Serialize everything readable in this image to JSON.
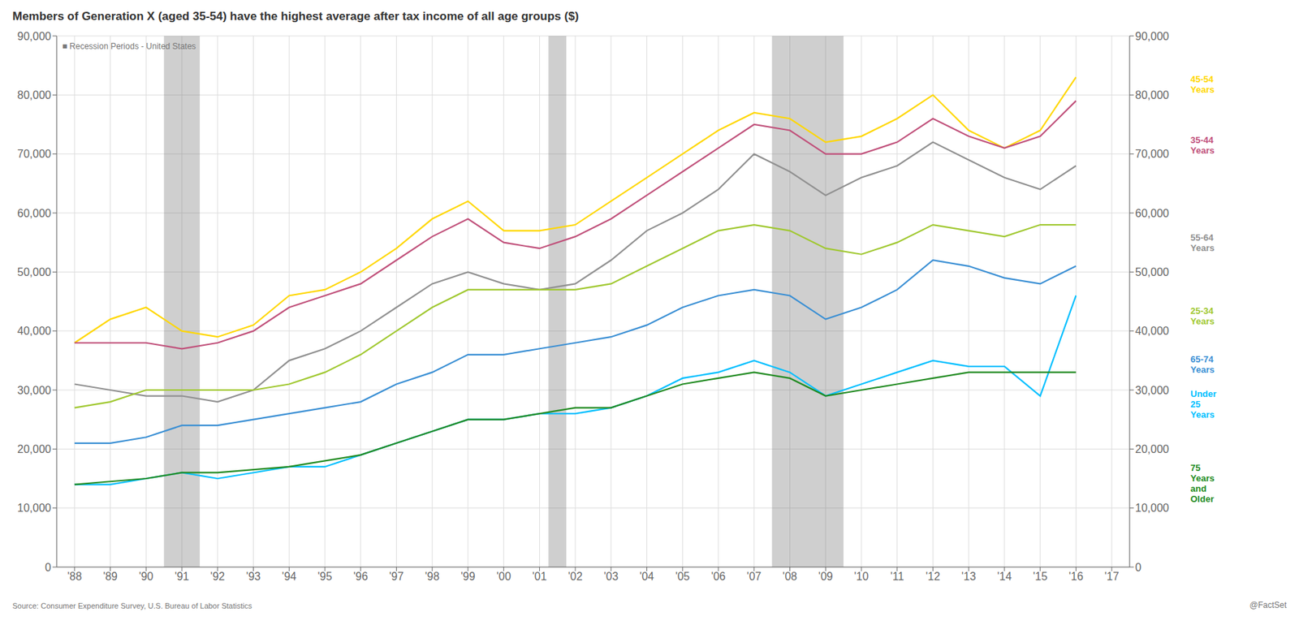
{
  "chart_data": {
    "type": "line",
    "title": "Members of Generation X (aged 35-54) have the highest average after tax income of all age groups ($)",
    "subtitle": "■  Recession Periods - United States",
    "source": "Source: Consumer Expenditure Survey, U.S. Bureau of Labor Statistics",
    "watermark": "@FactSet",
    "x": [
      1988,
      1989,
      1990,
      1991,
      1992,
      1993,
      1994,
      1995,
      1996,
      1997,
      1998,
      1999,
      2000,
      2001,
      2002,
      2003,
      2004,
      2005,
      2006,
      2007,
      2008,
      2009,
      2010,
      2011,
      2012,
      2013,
      2014,
      2015,
      2016
    ],
    "series": [
      {
        "name": "45-54 Years",
        "color": "#ffd700",
        "values": [
          38000,
          42000,
          44000,
          40000,
          39000,
          41000,
          46000,
          47000,
          50000,
          54000,
          59000,
          62000,
          57000,
          57000,
          58000,
          62000,
          66000,
          70000,
          74000,
          77000,
          76000,
          72000,
          73000,
          76000,
          80000,
          74000,
          71000,
          74000,
          83000
        ]
      },
      {
        "name": "35-44 Years",
        "color": "#c0507a",
        "values": [
          38000,
          38000,
          38000,
          37000,
          38000,
          40000,
          44000,
          46000,
          48000,
          52000,
          56000,
          59000,
          55000,
          54000,
          56000,
          59000,
          63000,
          67000,
          71000,
          75000,
          74000,
          70000,
          70000,
          72000,
          76000,
          73000,
          71000,
          73000,
          79000
        ]
      },
      {
        "name": "55-64 Years",
        "color": "#909090",
        "values": [
          31000,
          30000,
          29000,
          29000,
          28000,
          30000,
          35000,
          37000,
          40000,
          44000,
          48000,
          50000,
          48000,
          47000,
          48000,
          52000,
          57000,
          60000,
          64000,
          70000,
          67000,
          63000,
          66000,
          68000,
          72000,
          69000,
          66000,
          64000,
          68000
        ]
      },
      {
        "name": "25-34 Years",
        "color": "#a0c830",
        "values": [
          27000,
          28000,
          30000,
          30000,
          30000,
          30000,
          31000,
          33000,
          36000,
          40000,
          44000,
          47000,
          47000,
          47000,
          47000,
          48000,
          51000,
          54000,
          57000,
          58000,
          57000,
          54000,
          53000,
          55000,
          58000,
          57000,
          56000,
          58000,
          58000
        ]
      },
      {
        "name": "65-74 Years",
        "color": "#3a8fd4",
        "values": [
          21000,
          21000,
          22000,
          24000,
          24000,
          25000,
          26000,
          27000,
          28000,
          31000,
          33000,
          36000,
          36000,
          37000,
          38000,
          39000,
          41000,
          44000,
          46000,
          47000,
          46000,
          42000,
          44000,
          47000,
          52000,
          51000,
          49000,
          48000,
          51000
        ]
      },
      {
        "name": "Under 25 Years",
        "color": "#00bfff",
        "values": [
          14000,
          14000,
          15000,
          16000,
          15000,
          16000,
          17000,
          17000,
          19000,
          21000,
          23000,
          25000,
          25000,
          26000,
          26000,
          27000,
          29000,
          32000,
          33000,
          35000,
          33000,
          29000,
          31000,
          33000,
          35000,
          34000,
          34000,
          29000,
          46000
        ]
      },
      {
        "name": "75 Years and Older",
        "color": "#228B22",
        "values": [
          14000,
          14500,
          15000,
          16000,
          16000,
          16500,
          17000,
          18000,
          19000,
          21000,
          23000,
          25000,
          25000,
          26000,
          27000,
          27000,
          29000,
          31000,
          32000,
          33000,
          32000,
          29000,
          30000,
          31000,
          32000,
          33000,
          33000,
          33000,
          33000
        ]
      }
    ],
    "recession_periods": [
      [
        1990.5,
        1991.5
      ],
      [
        2001.25,
        2001.75
      ],
      [
        2007.5,
        2009.5
      ]
    ],
    "xlim": [
      1987.5,
      2017.5
    ],
    "xticks": [
      {
        "value": 1988,
        "label": "'88"
      },
      {
        "value": 1989,
        "label": "'89"
      },
      {
        "value": 1990,
        "label": "'90"
      },
      {
        "value": 1991,
        "label": "'91"
      },
      {
        "value": 1992,
        "label": "'92"
      },
      {
        "value": 1993,
        "label": "'93"
      },
      {
        "value": 1994,
        "label": "'94"
      },
      {
        "value": 1995,
        "label": "'95"
      },
      {
        "value": 1996,
        "label": "'96"
      },
      {
        "value": 1997,
        "label": "'97"
      },
      {
        "value": 1998,
        "label": "'98"
      },
      {
        "value": 1999,
        "label": "'99"
      },
      {
        "value": 2000,
        "label": "'00"
      },
      {
        "value": 2001,
        "label": "'01"
      },
      {
        "value": 2002,
        "label": "'02"
      },
      {
        "value": 2003,
        "label": "'03"
      },
      {
        "value": 2004,
        "label": "'04"
      },
      {
        "value": 2005,
        "label": "'05"
      },
      {
        "value": 2006,
        "label": "'06"
      },
      {
        "value": 2007,
        "label": "'07"
      },
      {
        "value": 2008,
        "label": "'08"
      },
      {
        "value": 2009,
        "label": "'09"
      },
      {
        "value": 2010,
        "label": "'10"
      },
      {
        "value": 2011,
        "label": "'11"
      },
      {
        "value": 2012,
        "label": "'12"
      },
      {
        "value": 2013,
        "label": "'13"
      },
      {
        "value": 2014,
        "label": "'14"
      },
      {
        "value": 2015,
        "label": "'15"
      },
      {
        "value": 2016,
        "label": "'16"
      },
      {
        "value": 2017,
        "label": "'17"
      }
    ],
    "ylim": [
      0,
      90000
    ],
    "yticks": [
      0,
      {
        "value": 10000,
        "label": "10,000"
      },
      {
        "value": 20000,
        "label": "20,000"
      },
      {
        "value": 30000,
        "label": "30,000"
      },
      {
        "value": 40000,
        "label": "40,000"
      },
      {
        "value": 50000,
        "label": "50,000"
      },
      {
        "value": 60000,
        "label": "60,000"
      },
      {
        "value": 70000,
        "label": "70,000"
      },
      {
        "value": 80000,
        "label": "80,000"
      },
      {
        "value": 90000,
        "label": "90,000"
      }
    ],
    "y2lim": [
      0,
      90000
    ],
    "y2ticks": [
      0,
      {
        "value": 10000,
        "label": "10,000"
      },
      {
        "value": 20000,
        "label": "20,000"
      },
      {
        "value": 30000,
        "label": "30,000"
      },
      {
        "value": 40000,
        "label": "40,000"
      },
      {
        "value": 50000,
        "label": "50,000"
      },
      {
        "value": 60000,
        "label": "60,000"
      },
      {
        "value": 70000,
        "label": "70,000"
      },
      {
        "value": 80000,
        "label": "80,000"
      },
      {
        "value": 90000,
        "label": "90,000"
      }
    ],
    "grid": true
  }
}
